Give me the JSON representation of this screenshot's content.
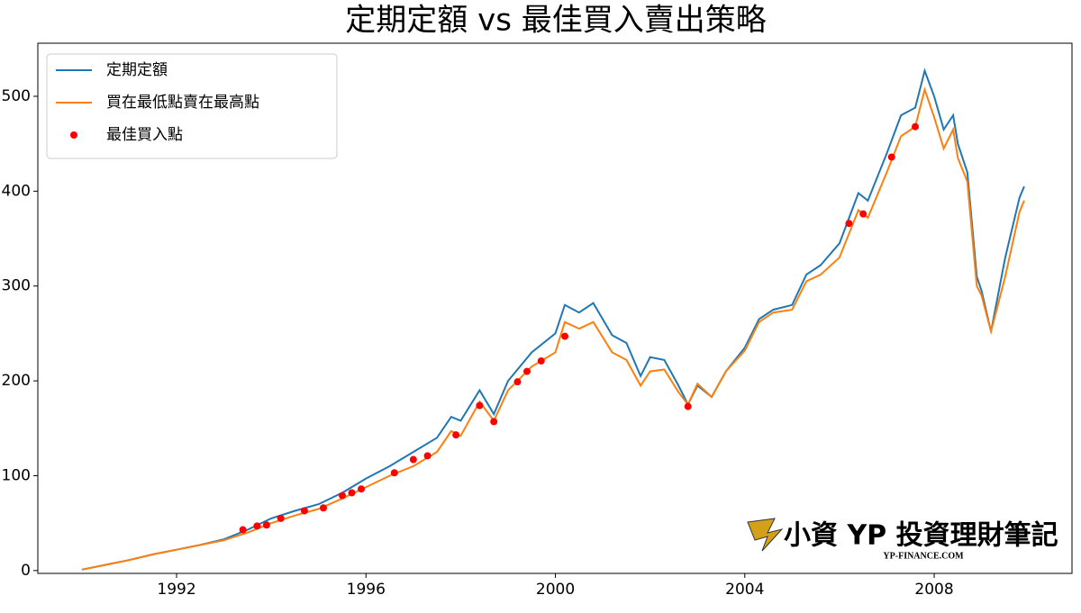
{
  "chart_data": {
    "type": "line",
    "title": "定期定額 vs 最佳買入賣出策略",
    "x": [
      1990.0,
      1990.5,
      1991.0,
      1991.5,
      1992.0,
      1992.5,
      1993.0,
      1993.5,
      1994.0,
      1994.5,
      1995.0,
      1995.5,
      1996.0,
      1996.5,
      1997.0,
      1997.5,
      1997.8,
      1998.0,
      1998.4,
      1998.7,
      1999.0,
      1999.5,
      2000.0,
      2000.2,
      2000.5,
      2000.8,
      2001.2,
      2001.5,
      2001.8,
      2002.0,
      2002.3,
      2002.6,
      2002.8,
      2003.0,
      2003.3,
      2003.6,
      2004.0,
      2004.3,
      2004.6,
      2005.0,
      2005.3,
      2005.6,
      2006.0,
      2006.4,
      2006.6,
      2007.0,
      2007.3,
      2007.6,
      2007.8,
      2008.0,
      2008.2,
      2008.4,
      2008.5,
      2008.7,
      2008.9,
      2009.0,
      2009.2,
      2009.5,
      2009.8,
      2009.9
    ],
    "series": [
      {
        "name": "定期定額",
        "color": "#1f77b4",
        "values": [
          1,
          6,
          11,
          17,
          22,
          27,
          33,
          43,
          55,
          63,
          70,
          82,
          97,
          110,
          125,
          140,
          162,
          158,
          190,
          165,
          200,
          230,
          250,
          280,
          272,
          282,
          248,
          240,
          205,
          225,
          222,
          195,
          175,
          195,
          183,
          210,
          235,
          265,
          275,
          280,
          312,
          322,
          345,
          398,
          390,
          440,
          480,
          488,
          527,
          500,
          465,
          480,
          450,
          420,
          310,
          295,
          252,
          330,
          393,
          405
        ]
      },
      {
        "name": "買在最低點賣在最高點",
        "color": "#ff7f0e",
        "values": [
          1,
          6,
          11,
          17,
          22,
          27,
          32,
          40,
          50,
          58,
          65,
          76,
          88,
          100,
          110,
          125,
          147,
          142,
          178,
          158,
          190,
          215,
          230,
          262,
          255,
          262,
          230,
          222,
          195,
          210,
          212,
          188,
          175,
          197,
          183,
          210,
          232,
          262,
          272,
          275,
          305,
          312,
          330,
          380,
          372,
          420,
          458,
          468,
          507,
          478,
          445,
          465,
          435,
          410,
          300,
          290,
          252,
          310,
          378,
          390
        ]
      }
    ],
    "scatter": {
      "name": "最佳買入點",
      "color": "#ff0000",
      "x": [
        1993.4,
        1993.7,
        1993.9,
        1994.2,
        1994.7,
        1995.1,
        1995.5,
        1995.7,
        1995.9,
        1996.6,
        1997.0,
        1997.3,
        1997.9,
        1998.4,
        1998.7,
        1999.2,
        1999.4,
        1999.7,
        2000.2,
        2002.8,
        2006.2,
        2006.5,
        2007.1,
        2007.6
      ],
      "y": [
        43,
        47,
        48,
        55,
        63,
        66,
        79,
        82,
        86,
        103,
        117,
        121,
        143,
        174,
        157,
        199,
        210,
        221,
        247,
        173,
        366,
        376,
        436,
        468
      ]
    },
    "xlim": [
      1989.07,
      2010.91
    ],
    "xticks": [
      1992,
      1996,
      2000,
      2004,
      2008
    ],
    "ylim": [
      -3,
      556
    ],
    "yticks": [
      0,
      100,
      200,
      300,
      400,
      500
    ],
    "legend": "upper left",
    "watermark": {
      "title": "小資 YP 投資理財筆記",
      "site": "YP-FINANCE.COM"
    }
  }
}
